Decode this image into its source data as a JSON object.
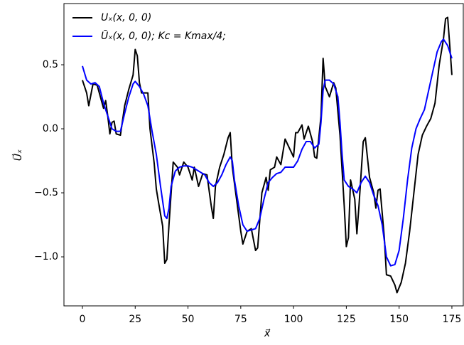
{
  "chart_data": {
    "type": "line",
    "xlabel": "x⃗",
    "ylabel": "U⃗ₓ",
    "xlim": [
      -8.75,
      180.4
    ],
    "ylim": [
      -1.383,
      0.978
    ],
    "xticks": [
      0,
      25,
      50,
      75,
      100,
      125,
      150,
      175
    ],
    "yticks": [
      0.5,
      {
        "value": 0.0,
        "label": "0.0"
      },
      {
        "value": -0.5,
        "label": "−0.5"
      },
      {
        "value": -1.0,
        "label": "−1.0"
      }
    ],
    "legend": "upper left",
    "grid": false,
    "series": [
      {
        "name": "Uₓ(x, 0, 0)",
        "color": "#000000",
        "x": [
          0,
          2,
          3,
          5,
          7,
          9,
          10,
          11,
          12,
          13,
          14,
          15,
          16,
          18,
          20,
          22,
          24,
          25,
          26,
          27,
          28,
          30,
          31,
          32,
          34,
          35,
          36,
          38,
          39,
          40,
          41,
          43,
          45,
          46,
          48,
          50,
          52,
          53,
          55,
          57,
          59,
          61,
          62,
          63,
          65,
          67,
          69,
          70,
          71,
          73,
          75,
          76,
          78,
          80,
          82,
          83,
          85,
          87,
          88,
          89,
          91,
          92,
          94,
          96,
          98,
          100,
          101,
          102,
          104,
          105,
          107,
          109,
          110,
          111,
          113,
          114,
          115,
          117,
          119,
          120,
          122,
          124,
          125,
          126,
          127,
          129,
          130,
          131,
          133,
          134,
          136,
          138,
          139,
          140,
          141,
          143,
          144,
          146,
          148,
          149,
          151,
          153,
          155,
          157,
          159,
          161,
          163,
          165,
          167,
          169,
          171,
          172,
          173,
          174,
          175
        ],
        "values": [
          0.38,
          0.28,
          0.18,
          0.35,
          0.34,
          0.22,
          0.16,
          0.22,
          0.1,
          -0.04,
          0.05,
          0.06,
          -0.04,
          -0.05,
          0.18,
          0.31,
          0.42,
          0.62,
          0.57,
          0.36,
          0.28,
          0.28,
          0.28,
          0.0,
          -0.27,
          -0.47,
          -0.57,
          -0.76,
          -1.05,
          -1.02,
          -0.75,
          -0.26,
          -0.3,
          -0.36,
          -0.26,
          -0.3,
          -0.4,
          -0.3,
          -0.45,
          -0.35,
          -0.36,
          -0.6,
          -0.7,
          -0.45,
          -0.3,
          -0.2,
          -0.07,
          -0.03,
          -0.3,
          -0.55,
          -0.8,
          -0.9,
          -0.8,
          -0.78,
          -0.95,
          -0.93,
          -0.5,
          -0.38,
          -0.48,
          -0.32,
          -0.3,
          -0.22,
          -0.28,
          -0.08,
          -0.15,
          -0.22,
          -0.03,
          -0.03,
          0.03,
          -0.08,
          0.02,
          -0.1,
          -0.22,
          -0.23,
          0.1,
          0.55,
          0.33,
          0.25,
          0.36,
          0.32,
          -0.05,
          -0.6,
          -0.92,
          -0.85,
          -0.4,
          -0.55,
          -0.82,
          -0.6,
          -0.1,
          -0.07,
          -0.38,
          -0.5,
          -0.62,
          -0.48,
          -0.47,
          -0.85,
          -1.14,
          -1.15,
          -1.22,
          -1.28,
          -1.2,
          -1.05,
          -0.8,
          -0.5,
          -0.2,
          -0.05,
          0.02,
          0.08,
          0.2,
          0.5,
          0.7,
          0.86,
          0.87,
          0.65,
          0.42
        ]
      },
      {
        "name": "Ūₓ(x, 0, 0);  Kc = Kmax/4;",
        "color": "#0000ff",
        "x": [
          0,
          2,
          4,
          6,
          8,
          10,
          12,
          14,
          16,
          18,
          20,
          22,
          24,
          25,
          27,
          29,
          31,
          33,
          35,
          37,
          39,
          40,
          41,
          42,
          44,
          46,
          48,
          50,
          52,
          54,
          56,
          58,
          60,
          62,
          64,
          66,
          68,
          70,
          71,
          72,
          74,
          76,
          78,
          80,
          82,
          84,
          86,
          88,
          90,
          92,
          94,
          96,
          98,
          100,
          102,
          104,
          106,
          108,
          110,
          112,
          113,
          114,
          115,
          117,
          119,
          121,
          122,
          123,
          124,
          126,
          128,
          130,
          132,
          134,
          136,
          138,
          140,
          142,
          144,
          146,
          148,
          150,
          152,
          154,
          156,
          158,
          160,
          162,
          164,
          166,
          168,
          170,
          171,
          173,
          175
        ],
        "values": [
          0.49,
          0.38,
          0.35,
          0.36,
          0.33,
          0.2,
          0.1,
          0.0,
          -0.02,
          -0.02,
          0.12,
          0.25,
          0.35,
          0.37,
          0.33,
          0.27,
          0.18,
          -0.02,
          -0.2,
          -0.45,
          -0.68,
          -0.7,
          -0.62,
          -0.45,
          -0.33,
          -0.3,
          -0.29,
          -0.29,
          -0.3,
          -0.32,
          -0.34,
          -0.36,
          -0.42,
          -0.45,
          -0.42,
          -0.36,
          -0.28,
          -0.22,
          -0.25,
          -0.4,
          -0.6,
          -0.75,
          -0.8,
          -0.79,
          -0.78,
          -0.7,
          -0.55,
          -0.42,
          -0.38,
          -0.35,
          -0.34,
          -0.3,
          -0.3,
          -0.3,
          -0.25,
          -0.16,
          -0.1,
          -0.1,
          -0.15,
          -0.12,
          0.05,
          0.3,
          0.38,
          0.38,
          0.35,
          0.25,
          0.05,
          -0.2,
          -0.4,
          -0.45,
          -0.47,
          -0.5,
          -0.42,
          -0.37,
          -0.42,
          -0.52,
          -0.6,
          -0.75,
          -1.0,
          -1.07,
          -1.06,
          -0.95,
          -0.7,
          -0.4,
          -0.15,
          0.0,
          0.08,
          0.15,
          0.3,
          0.45,
          0.6,
          0.68,
          0.7,
          0.65,
          0.55
        ]
      }
    ]
  }
}
